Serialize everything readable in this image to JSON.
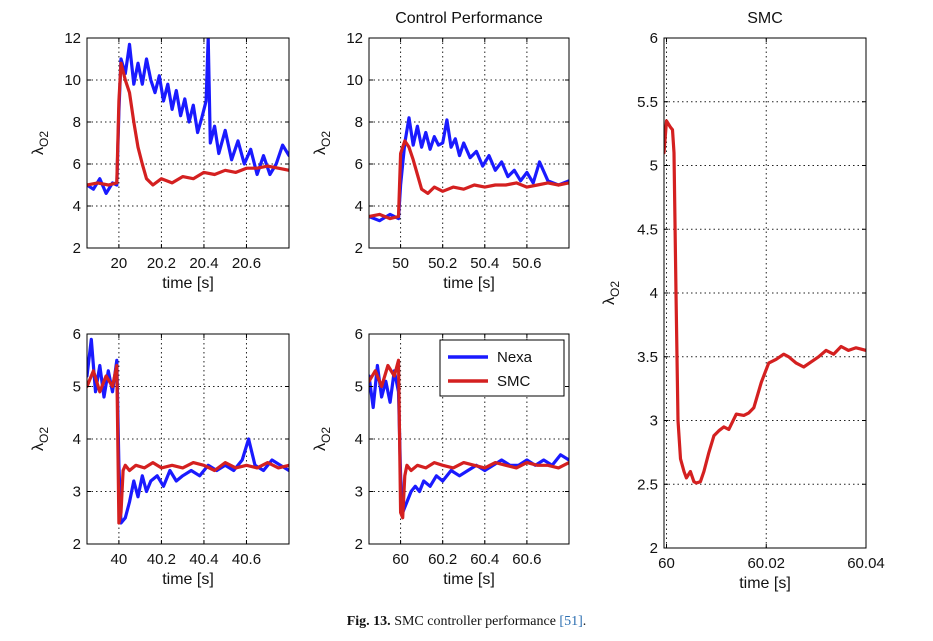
{
  "caption": {
    "label": "Fig. 13.",
    "text": "SMC controller performance",
    "ref": "[51]",
    "end": "."
  },
  "colors": {
    "Nexa": "#1a1aff",
    "SMC": "#d42020"
  },
  "chart_data": [
    {
      "type": "line",
      "panel": "top-left",
      "title": "",
      "xlabel": "time [s]",
      "ylabel": "λO2",
      "xlim": [
        19.85,
        20.8
      ],
      "ylim": [
        2,
        12
      ],
      "xticks": [
        20,
        20.2,
        20.4,
        20.6
      ],
      "xtick_labels": [
        "20",
        "20.2",
        "20.4",
        "20.6"
      ],
      "yticks": [
        2,
        4,
        6,
        8,
        10,
        12
      ],
      "ytick_labels": [
        "2",
        "4",
        "6",
        "8",
        "10",
        "12"
      ],
      "grid": true,
      "series": [
        {
          "name": "Nexa",
          "x": [
            19.85,
            19.88,
            19.91,
            19.94,
            19.97,
            19.99,
            20.0,
            20.01,
            20.03,
            20.05,
            20.07,
            20.09,
            20.11,
            20.13,
            20.15,
            20.17,
            20.19,
            20.21,
            20.23,
            20.25,
            20.27,
            20.29,
            20.31,
            20.33,
            20.35,
            20.37,
            20.39,
            20.41,
            20.42,
            20.43,
            20.45,
            20.47,
            20.5,
            20.53,
            20.56,
            20.59,
            20.62,
            20.65,
            20.68,
            20.71,
            20.74,
            20.77,
            20.8
          ],
          "y": [
            5,
            4.8,
            5.3,
            4.6,
            5.1,
            5.0,
            8.5,
            11.0,
            10.3,
            11.7,
            9.8,
            10.8,
            9.8,
            11.0,
            10.0,
            9.4,
            10.2,
            9.0,
            9.8,
            8.6,
            9.5,
            8.3,
            9.1,
            8.0,
            8.8,
            7.5,
            8.2,
            9.0,
            12.0,
            7.0,
            7.8,
            6.5,
            7.6,
            6.2,
            7.1,
            6.0,
            6.7,
            5.5,
            6.4,
            5.5,
            6.0,
            6.9,
            6.4
          ]
        },
        {
          "name": "SMC",
          "x": [
            19.85,
            19.9,
            19.95,
            19.99,
            20.0,
            20.01,
            20.03,
            20.05,
            20.07,
            20.09,
            20.11,
            20.13,
            20.16,
            20.2,
            20.25,
            20.3,
            20.35,
            20.4,
            20.45,
            20.5,
            20.55,
            20.6,
            20.65,
            20.7,
            20.75,
            20.8
          ],
          "y": [
            5,
            5.1,
            5.0,
            5.1,
            9.0,
            10.8,
            10.0,
            9.4,
            8.0,
            6.8,
            6.0,
            5.3,
            5.0,
            5.3,
            5.1,
            5.4,
            5.3,
            5.6,
            5.5,
            5.7,
            5.6,
            5.8,
            5.8,
            5.9,
            5.8,
            5.7
          ]
        }
      ]
    },
    {
      "type": "line",
      "panel": "top-middle",
      "title": "Control Performance",
      "xlabel": "time [s]",
      "ylabel": "λO2",
      "xlim": [
        49.85,
        50.8
      ],
      "ylim": [
        2,
        12
      ],
      "xticks": [
        50,
        50.2,
        50.4,
        50.6
      ],
      "xtick_labels": [
        "50",
        "50.2",
        "50.4",
        "50.6"
      ],
      "yticks": [
        2,
        4,
        6,
        8,
        10,
        12
      ],
      "ytick_labels": [
        "2",
        "4",
        "6",
        "8",
        "10",
        "12"
      ],
      "grid": true,
      "series": [
        {
          "name": "Nexa",
          "x": [
            49.85,
            49.9,
            49.95,
            49.99,
            50.0,
            50.02,
            50.04,
            50.06,
            50.08,
            50.1,
            50.12,
            50.14,
            50.16,
            50.18,
            50.2,
            50.22,
            50.24,
            50.26,
            50.28,
            50.3,
            50.33,
            50.36,
            50.39,
            50.42,
            50.45,
            50.48,
            50.51,
            50.54,
            50.57,
            50.6,
            50.63,
            50.66,
            50.7,
            50.75,
            50.8
          ],
          "y": [
            3.5,
            3.3,
            3.6,
            3.4,
            5.0,
            7.0,
            8.2,
            6.9,
            7.8,
            6.8,
            7.5,
            6.7,
            7.3,
            6.9,
            7.0,
            8.1,
            6.8,
            7.2,
            6.4,
            7.0,
            6.3,
            6.6,
            5.9,
            6.4,
            5.7,
            6.1,
            5.4,
            5.7,
            5.2,
            5.6,
            5.1,
            6.1,
            5.2,
            5.0,
            5.2
          ]
        },
        {
          "name": "SMC",
          "x": [
            49.85,
            49.9,
            49.95,
            49.99,
            50.0,
            50.02,
            50.04,
            50.06,
            50.08,
            50.1,
            50.13,
            50.16,
            50.2,
            50.25,
            50.3,
            50.35,
            50.4,
            50.45,
            50.5,
            50.55,
            50.6,
            50.65,
            50.7,
            50.75,
            50.8
          ],
          "y": [
            3.5,
            3.6,
            3.4,
            3.5,
            6.5,
            7.1,
            6.8,
            6.2,
            5.5,
            4.8,
            4.6,
            4.9,
            4.7,
            4.9,
            4.8,
            5.0,
            4.9,
            5.0,
            5.0,
            5.1,
            4.9,
            5.0,
            5.1,
            5.0,
            5.1
          ]
        }
      ]
    },
    {
      "type": "line",
      "panel": "bottom-left",
      "title": "",
      "xlabel": "time [s]",
      "ylabel": "λO2",
      "xlim": [
        39.85,
        40.8
      ],
      "ylim": [
        2,
        6
      ],
      "xticks": [
        40,
        40.2,
        40.4,
        40.6
      ],
      "xtick_labels": [
        "40",
        "40.2",
        "40.4",
        "40.6"
      ],
      "yticks": [
        2,
        3,
        4,
        5,
        6
      ],
      "ytick_labels": [
        "2",
        "3",
        "4",
        "5",
        "6"
      ],
      "grid": true,
      "series": [
        {
          "name": "Nexa",
          "x": [
            39.85,
            39.87,
            39.89,
            39.91,
            39.93,
            39.95,
            39.97,
            39.99,
            40.0,
            40.01,
            40.03,
            40.05,
            40.07,
            40.09,
            40.11,
            40.13,
            40.15,
            40.18,
            40.21,
            40.24,
            40.27,
            40.3,
            40.34,
            40.38,
            40.42,
            40.46,
            40.5,
            40.54,
            40.58,
            40.61,
            40.64,
            40.68,
            40.72,
            40.76,
            40.8
          ],
          "y": [
            5.2,
            5.9,
            4.9,
            5.4,
            4.8,
            5.3,
            4.9,
            5.5,
            3.5,
            2.4,
            2.5,
            2.8,
            3.2,
            2.9,
            3.3,
            3.0,
            3.2,
            3.3,
            3.1,
            3.4,
            3.2,
            3.3,
            3.4,
            3.3,
            3.5,
            3.4,
            3.5,
            3.4,
            3.6,
            4.0,
            3.5,
            3.4,
            3.6,
            3.5,
            3.4
          ]
        },
        {
          "name": "SMC",
          "x": [
            39.85,
            39.88,
            39.91,
            39.94,
            39.97,
            39.99,
            40.0,
            40.01,
            40.02,
            40.03,
            40.05,
            40.08,
            40.12,
            40.16,
            40.2,
            40.25,
            40.3,
            40.35,
            40.4,
            40.45,
            40.5,
            40.55,
            40.6,
            40.65,
            40.7,
            40.75,
            40.8
          ],
          "y": [
            5.0,
            5.3,
            4.9,
            5.2,
            5.0,
            5.4,
            2.4,
            2.6,
            3.4,
            3.5,
            3.4,
            3.5,
            3.45,
            3.55,
            3.45,
            3.5,
            3.45,
            3.55,
            3.5,
            3.4,
            3.55,
            3.45,
            3.5,
            3.45,
            3.55,
            3.45,
            3.5
          ]
        }
      ]
    },
    {
      "type": "line",
      "panel": "bottom-middle",
      "title": "",
      "xlabel": "time [s]",
      "ylabel": "λO2",
      "xlim": [
        59.85,
        60.8
      ],
      "ylim": [
        2,
        6
      ],
      "xticks": [
        60,
        60.2,
        60.4,
        60.6
      ],
      "xtick_labels": [
        "60",
        "60.2",
        "60.4",
        "60.6"
      ],
      "yticks": [
        2,
        3,
        4,
        5,
        6
      ],
      "ytick_labels": [
        "2",
        "3",
        "4",
        "5",
        "6"
      ],
      "grid": true,
      "series": [
        {
          "name": "Nexa",
          "x": [
            59.85,
            59.87,
            59.89,
            59.91,
            59.93,
            59.95,
            59.97,
            59.99,
            60.0,
            60.01,
            60.03,
            60.05,
            60.07,
            60.09,
            60.11,
            60.14,
            60.17,
            60.2,
            60.24,
            60.28,
            60.32,
            60.36,
            60.4,
            60.44,
            60.48,
            60.52,
            60.56,
            60.6,
            60.64,
            60.68,
            60.72,
            60.76,
            60.8
          ],
          "y": [
            5.2,
            4.6,
            5.4,
            4.8,
            5.1,
            4.7,
            5.3,
            4.9,
            3.3,
            2.6,
            2.8,
            3.0,
            3.1,
            3.0,
            3.2,
            3.1,
            3.3,
            3.2,
            3.4,
            3.3,
            3.4,
            3.5,
            3.4,
            3.5,
            3.6,
            3.5,
            3.5,
            3.6,
            3.5,
            3.6,
            3.5,
            3.7,
            3.6
          ]
        },
        {
          "name": "SMC",
          "x": [
            59.85,
            59.88,
            59.91,
            59.94,
            59.97,
            59.99,
            60.0,
            60.01,
            60.02,
            60.03,
            60.05,
            60.08,
            60.12,
            60.16,
            60.2,
            60.25,
            60.3,
            60.35,
            60.4,
            60.45,
            60.5,
            60.55,
            60.6,
            60.65,
            60.7,
            60.75,
            60.8
          ],
          "y": [
            5.1,
            5.3,
            5.0,
            5.4,
            5.2,
            5.5,
            2.6,
            2.5,
            3.3,
            3.5,
            3.4,
            3.5,
            3.45,
            3.55,
            3.5,
            3.45,
            3.55,
            3.5,
            3.45,
            3.55,
            3.5,
            3.45,
            3.55,
            3.5,
            3.5,
            3.45,
            3.55
          ]
        }
      ]
    },
    {
      "type": "line",
      "panel": "right",
      "title": "SMC",
      "xlabel": "time [s]",
      "ylabel": "λO2",
      "xlim": [
        59.9995,
        60.04
      ],
      "ylim": [
        2,
        6
      ],
      "xticks": [
        60,
        60.02,
        60.04
      ],
      "xtick_labels": [
        "60",
        "60.02",
        "60.04"
      ],
      "yticks": [
        2,
        2.5,
        3,
        3.5,
        4,
        4.5,
        5,
        5.5,
        6
      ],
      "ytick_labels": [
        "2",
        "2.5",
        "3",
        "3.5",
        "4",
        "4.5",
        "5",
        "5.5",
        "6"
      ],
      "grid": true,
      "series": [
        {
          "name": "SMC",
          "x": [
            59.9995,
            60.0,
            60.0008,
            60.0012,
            60.0015,
            60.0019,
            60.0023,
            60.0028,
            60.0035,
            60.004,
            60.0048,
            60.0055,
            60.006,
            60.0068,
            60.0075,
            60.0085,
            60.0095,
            60.0105,
            60.0115,
            60.0125,
            60.014,
            60.0155,
            60.0165,
            60.0175,
            60.019,
            60.0205,
            60.022,
            60.0235,
            60.0245,
            60.026,
            60.0275,
            60.029,
            60.0305,
            60.032,
            60.0335,
            60.035,
            60.0365,
            60.038,
            60.039,
            60.04
          ],
          "y": [
            5.1,
            5.35,
            5.3,
            5.28,
            5.1,
            4.0,
            3.0,
            2.7,
            2.6,
            2.55,
            2.6,
            2.52,
            2.51,
            2.52,
            2.6,
            2.75,
            2.88,
            2.92,
            2.95,
            2.93,
            3.05,
            3.04,
            3.06,
            3.1,
            3.3,
            3.45,
            3.48,
            3.52,
            3.5,
            3.45,
            3.42,
            3.46,
            3.5,
            3.55,
            3.52,
            3.58,
            3.55,
            3.57,
            3.56,
            3.55
          ]
        }
      ]
    }
  ]
}
